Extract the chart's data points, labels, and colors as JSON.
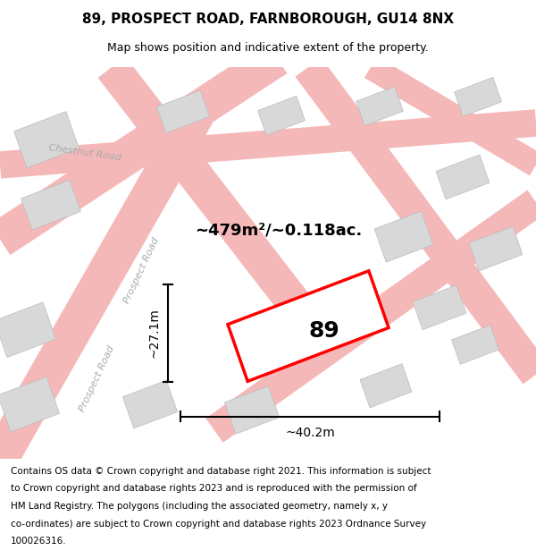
{
  "title": "89, PROSPECT ROAD, FARNBOROUGH, GU14 8NX",
  "subtitle": "Map shows position and indicative extent of the property.",
  "footer_lines": [
    "Contains OS data © Crown copyright and database right 2021. This information is subject",
    "to Crown copyright and database rights 2023 and is reproduced with the permission of",
    "HM Land Registry. The polygons (including the associated geometry, namely x, y",
    "co-ordinates) are subject to Crown copyright and database rights 2023 Ordnance Survey",
    "100026316."
  ],
  "property_label": "89",
  "area_label": "~479m²/~0.118ac.",
  "width_label": "~40.2m",
  "height_label": "~27.1m",
  "property_rect_color": "#ff0000",
  "road_color": "#f5b8b8",
  "building_color": "#d8d8d8",
  "road_label_color": "#aaaaaa",
  "title_fontsize": 11,
  "subtitle_fontsize": 9,
  "footer_fontsize": 7.5
}
